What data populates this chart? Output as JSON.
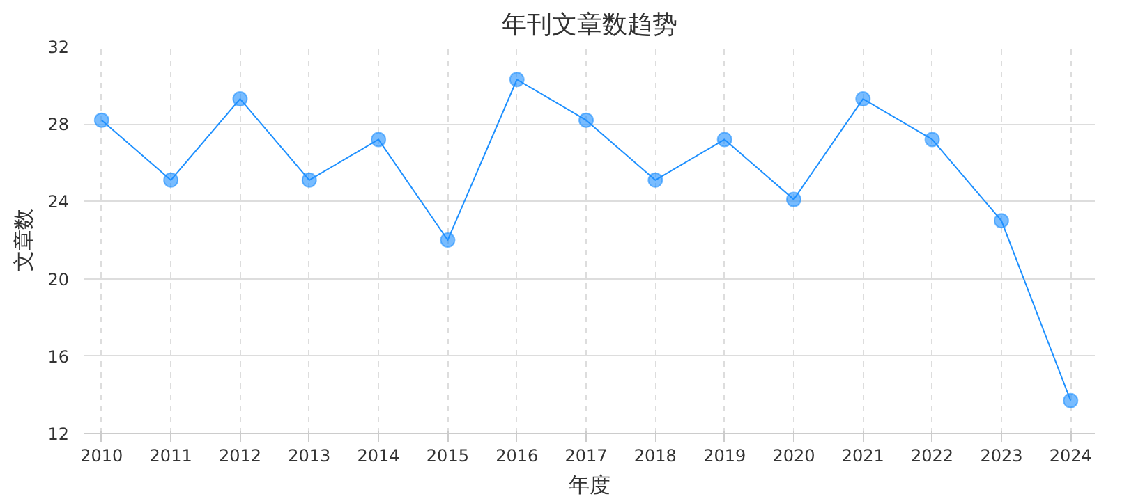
{
  "chart_data": {
    "type": "line",
    "title": "年刊文章数趋势",
    "xlabel": "年度",
    "ylabel": "文章数",
    "categories": [
      "2010",
      "2011",
      "2012",
      "2013",
      "2014",
      "2015",
      "2016",
      "2017",
      "2018",
      "2019",
      "2020",
      "2021",
      "2022",
      "2023",
      "2024"
    ],
    "series": [
      {
        "color": "#1e90ff",
        "values": [
          28.2,
          25.1,
          29.3,
          25.1,
          27.2,
          22.0,
          30.3,
          28.2,
          25.1,
          27.2,
          24.1,
          29.3,
          27.2,
          23.0,
          13.7
        ]
      }
    ],
    "ylim": [
      12,
      32
    ],
    "yticks": [
      12,
      16,
      20,
      24,
      28,
      32
    ],
    "grid": true,
    "marker": "circle",
    "line_style": "solid"
  }
}
